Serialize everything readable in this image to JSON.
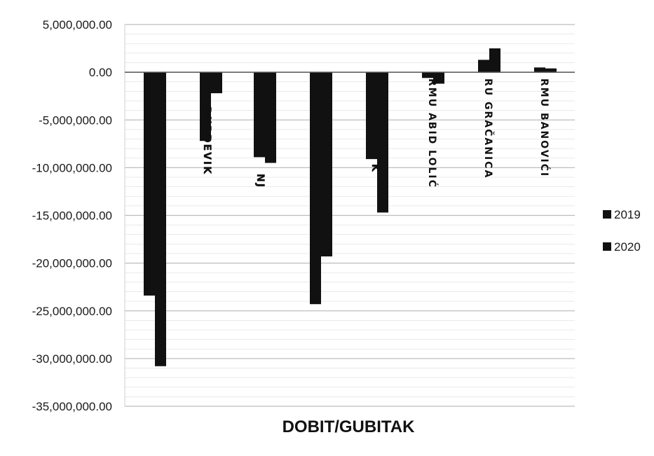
{
  "chart_data": {
    "type": "bar",
    "title": "",
    "xlabel": "DOBIT/GUBITAK",
    "ylabel": "",
    "ylim": [
      -35000000,
      5000000
    ],
    "ytick_step": 5000000,
    "yticks": [
      "5,000,000.00",
      "0.00",
      "-5,000,000.00",
      "-10,000,000.00",
      "-15,000,000.00",
      "-20,000,000.00",
      "-25,000,000.00",
      "-30,000,000.00",
      "-35,000,000.00"
    ],
    "categories": [
      "",
      "RMU ĐURĐEVIK",
      "",
      "",
      "",
      "RMU ABID LOLIĆ",
      "RU GRAČANICA",
      "RMU BANOVIĆI"
    ],
    "category_label_display": [
      "",
      "ĐURĐEVIK",
      "NJ",
      "",
      "K",
      "RMU ABID LOLIĆ",
      "RU GRAČANICA",
      "RMU BANOVIĆI"
    ],
    "series": [
      {
        "name": "2019",
        "values": [
          -23400000,
          -7200000,
          -8900000,
          -24300000,
          -9100000,
          -600000,
          1300000,
          500000
        ]
      },
      {
        "name": "2020",
        "values": [
          -30800000,
          -2200000,
          -9500000,
          -19300000,
          -14700000,
          -1200000,
          2500000,
          400000
        ]
      }
    ],
    "grid": true,
    "legend_position": "right",
    "colors": {
      "bar": "#111111",
      "grid": "#bdbdbd",
      "axis": "#555555"
    }
  }
}
